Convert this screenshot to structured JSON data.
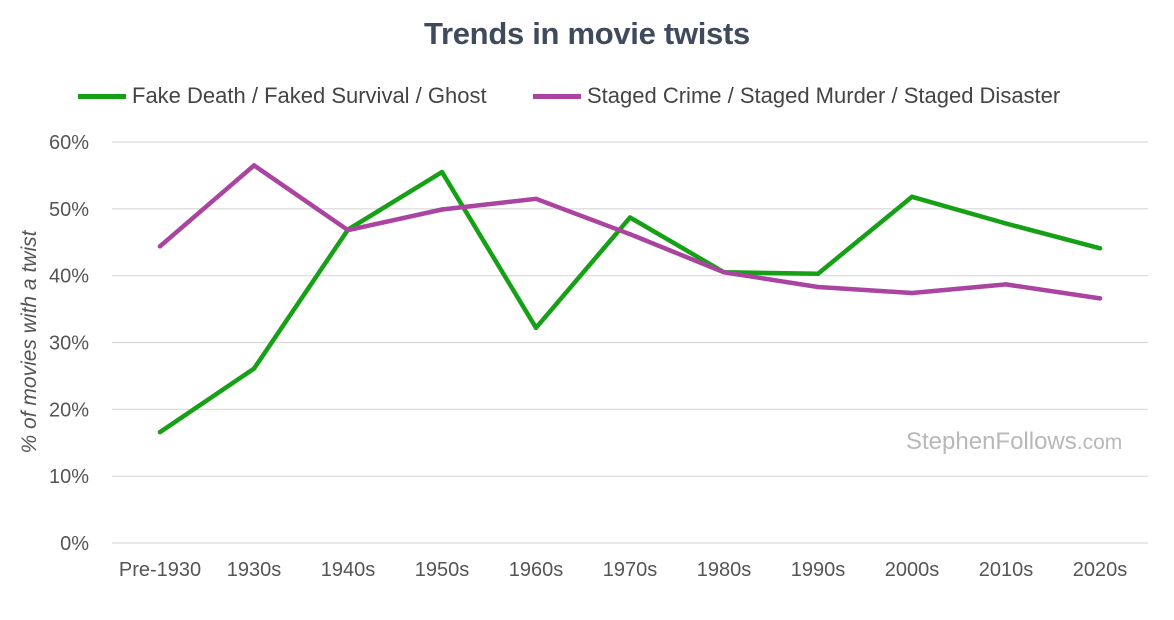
{
  "chart_data": {
    "type": "line",
    "title": "Trends in movie twists",
    "ylabel": "% of movies with a twist",
    "xlabel": "",
    "categories": [
      "Pre-1930",
      "1930s",
      "1940s",
      "1950s",
      "1960s",
      "1970s",
      "1980s",
      "1990s",
      "2000s",
      "2010s",
      "2020s"
    ],
    "ylim": [
      0,
      60
    ],
    "yticks": [
      0,
      10,
      20,
      30,
      40,
      50,
      60
    ],
    "ytick_labels": [
      "0%",
      "10%",
      "20%",
      "30%",
      "40%",
      "50%",
      "60%"
    ],
    "grid": true,
    "legend_position": "top",
    "series": [
      {
        "name": "Fake Death / Faked Survival / Ghost",
        "color": "#16a016",
        "values": [
          16.6,
          26.1,
          46.9,
          55.5,
          32.2,
          48.7,
          40.5,
          40.3,
          51.8,
          47.8,
          44.1
        ]
      },
      {
        "name": "Staged Crime / Staged Murder / Staged Disaster",
        "color": "#aa44a0",
        "values": [
          44.4,
          56.5,
          46.8,
          49.9,
          51.5,
          46.2,
          40.5,
          38.3,
          37.4,
          38.7,
          36.6
        ]
      }
    ]
  },
  "watermark": {
    "name": "StephenFollows",
    "domain": ".com"
  }
}
